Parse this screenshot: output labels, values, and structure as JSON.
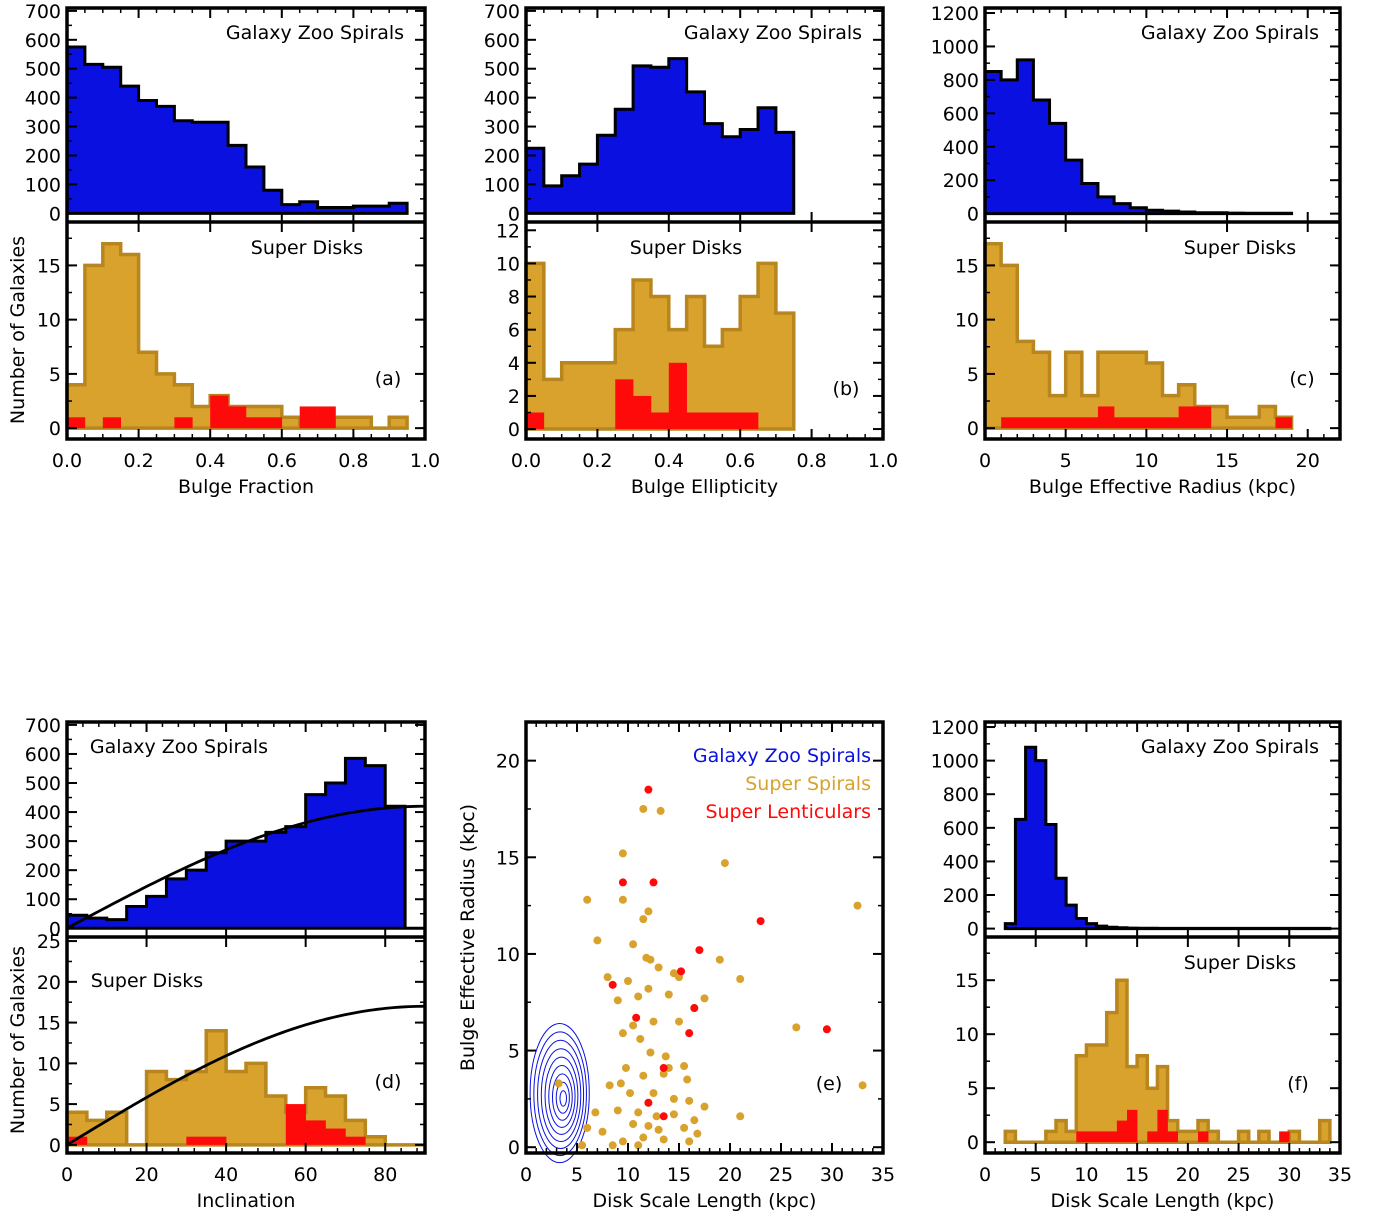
{
  "colors": {
    "gz": "#0a10e0",
    "sd": "#d8a22c",
    "sd_edge": "#b8861e",
    "sl": "#ff0a0a",
    "axis": "#000000"
  },
  "panel_labels": [
    "(a)",
    "(b)",
    "(c)",
    "(d)",
    "(e)",
    "(f)"
  ],
  "common": {
    "ylabel": "Number of Galaxies",
    "gz_label": "Galaxy Zoo Spirals",
    "sd_label": "Super Disks"
  },
  "chart_data": [
    {
      "id": "a",
      "type": "bar",
      "xlabel": "Bulge Fraction",
      "xlim": [
        0,
        1
      ],
      "xticks": [
        "0.0",
        "0.2",
        "0.4",
        "0.6",
        "0.8",
        "1.0"
      ],
      "top": {
        "title": "Galaxy Zoo Spirals",
        "ylim": [
          -30,
          710
        ],
        "yticks": [
          0,
          100,
          200,
          300,
          400,
          500,
          600,
          700
        ],
        "bin_start": 0,
        "bin_width": 0.05,
        "values": [
          575,
          515,
          505,
          440,
          390,
          370,
          320,
          315,
          315,
          235,
          160,
          80,
          30,
          40,
          20,
          20,
          25,
          25,
          35
        ]
      },
      "bottom": {
        "title": "Super Disks",
        "ylim": [
          -1,
          19
        ],
        "yticks": [
          0,
          5,
          10,
          15
        ],
        "bin_start": 0,
        "bin_width": 0.05,
        "spirals": [
          4,
          15,
          17,
          16,
          7,
          5,
          4,
          2,
          3,
          2,
          2,
          2,
          1,
          0,
          1,
          1,
          1,
          0,
          1
        ],
        "lenticulars": [
          1,
          0,
          1,
          0,
          0,
          0,
          1,
          0,
          3,
          2,
          1,
          1,
          0,
          2,
          2,
          0,
          0,
          0,
          0,
          0
        ]
      }
    },
    {
      "id": "b",
      "type": "bar",
      "xlabel": "Bulge Ellipticity",
      "xlim": [
        0,
        1
      ],
      "xticks": [
        "0.0",
        "0.2",
        "0.4",
        "0.6",
        "0.8",
        "1.0"
      ],
      "top": {
        "title": "Galaxy Zoo Spirals",
        "ylim": [
          -30,
          710
        ],
        "yticks": [
          0,
          100,
          200,
          300,
          400,
          500,
          600,
          700
        ],
        "bin_start": 0,
        "bin_width": 0.05,
        "values": [
          225,
          95,
          130,
          170,
          270,
          360,
          510,
          505,
          535,
          420,
          310,
          265,
          290,
          365,
          280
        ]
      },
      "bottom": {
        "title": "Super Disks",
        "ylim": [
          -0.6,
          12.5
        ],
        "yticks": [
          0,
          2,
          4,
          6,
          8,
          10,
          12
        ],
        "bin_start": 0,
        "bin_width": 0.05,
        "spirals": [
          10,
          3,
          4,
          4,
          4,
          6,
          9,
          8,
          6,
          8,
          5,
          6,
          8,
          10,
          7
        ],
        "lenticulars": [
          1,
          0,
          0,
          0,
          0,
          3,
          2,
          1,
          4,
          1,
          1,
          1,
          1,
          0,
          0
        ]
      }
    },
    {
      "id": "c",
      "type": "bar",
      "xlabel": "Bulge Effective Radius (kpc)",
      "xlim": [
        0,
        22
      ],
      "xticks": [
        "0",
        "5",
        "10",
        "15",
        "20"
      ],
      "top": {
        "title": "Galaxy Zoo Spirals",
        "ylim": [
          -50,
          1230
        ],
        "yticks": [
          0,
          200,
          400,
          600,
          800,
          1000,
          1200
        ],
        "bin_start": 0,
        "bin_width": 1,
        "values": [
          850,
          800,
          920,
          680,
          540,
          320,
          180,
          100,
          60,
          35,
          20,
          15,
          10,
          5,
          5,
          3,
          2,
          2,
          2
        ]
      },
      "bottom": {
        "title": "Super Disks",
        "ylim": [
          -1,
          19
        ],
        "yticks": [
          0,
          5,
          10,
          15
        ],
        "bin_start": 0,
        "bin_width": 1,
        "spirals": [
          17,
          15,
          8,
          7,
          3,
          7,
          3,
          7,
          7,
          7,
          6,
          3,
          4,
          2,
          2,
          1,
          1,
          2,
          1
        ],
        "lenticulars": [
          0,
          1,
          1,
          1,
          1,
          1,
          1,
          2,
          1,
          1,
          1,
          1,
          2,
          2,
          0,
          0,
          0,
          0,
          1
        ]
      }
    },
    {
      "id": "d",
      "type": "bar",
      "xlabel": "Inclination",
      "xlim": [
        0,
        90
      ],
      "xticks": [
        "0",
        "20",
        "40",
        "60",
        "80"
      ],
      "top": {
        "title": "Galaxy Zoo Spirals",
        "ylim": [
          -30,
          710
        ],
        "yticks": [
          0,
          100,
          200,
          300,
          400,
          500,
          600,
          700
        ],
        "bin_start": 0,
        "bin_width": 5,
        "values": [
          45,
          35,
          30,
          75,
          110,
          170,
          200,
          260,
          300,
          300,
          330,
          350,
          460,
          500,
          585,
          560,
          420,
          0
        ],
        "curve_amp": 420
      },
      "bottom": {
        "title": "Super Disks",
        "ylim": [
          -1,
          25.5
        ],
        "yticks": [
          0,
          5,
          10,
          15,
          20,
          25
        ],
        "bin_start": 0,
        "bin_width": 5,
        "spirals": [
          4,
          3,
          4,
          0,
          9,
          8,
          9,
          14,
          9,
          10,
          6,
          4,
          7,
          6,
          3,
          1,
          0,
          0
        ],
        "lenticulars": [
          1,
          0,
          0,
          0,
          0,
          0,
          1,
          1,
          0,
          0,
          0,
          5,
          3,
          2,
          1,
          0,
          0,
          0
        ],
        "curve_amp": 17
      }
    },
    {
      "id": "e",
      "type": "scatter",
      "xlabel": "Disk Scale Length (kpc)",
      "ylabel": "Bulge Effective Radius (kpc)",
      "xlim": [
        0,
        35
      ],
      "ylim": [
        -0.3,
        22
      ],
      "xticks": [
        "0",
        "5",
        "10",
        "15",
        "20",
        "25",
        "30",
        "35"
      ],
      "yticks": [
        "0",
        "5",
        "10",
        "15",
        "20"
      ],
      "legend": [
        "Galaxy Zoo Spirals",
        "Super Spirals",
        "Super Lenticulars"
      ],
      "contour_center": [
        3.5,
        2.8
      ],
      "contour_levels": 9,
      "super_spirals": [
        [
          11.5,
          17.5
        ],
        [
          13.2,
          17.4
        ],
        [
          9.5,
          15.2
        ],
        [
          19.5,
          14.7
        ],
        [
          32.5,
          12.5
        ],
        [
          6,
          12.8
        ],
        [
          9.5,
          12.8
        ],
        [
          11.5,
          11.8
        ],
        [
          12,
          12.2
        ],
        [
          7,
          10.7
        ],
        [
          10.5,
          10.5
        ],
        [
          11.8,
          9.8
        ],
        [
          12.2,
          9.7
        ],
        [
          14.5,
          9
        ],
        [
          19,
          9.7
        ],
        [
          8,
          8.8
        ],
        [
          10,
          8.6
        ],
        [
          13,
          9.3
        ],
        [
          15,
          8.8
        ],
        [
          21,
          8.7
        ],
        [
          9,
          7.6
        ],
        [
          11,
          7.8
        ],
        [
          12,
          8.2
        ],
        [
          14,
          7.9
        ],
        [
          16.5,
          7.2
        ],
        [
          17.5,
          7.7
        ],
        [
          10.5,
          6.3
        ],
        [
          12.5,
          6.5
        ],
        [
          15,
          6.5
        ],
        [
          26.5,
          6.2
        ],
        [
          9.5,
          5.9
        ],
        [
          11.2,
          5.6
        ],
        [
          13.7,
          4.7
        ],
        [
          9.8,
          4.1
        ],
        [
          12.2,
          4.9
        ],
        [
          14,
          4.1
        ],
        [
          15.5,
          4.2
        ],
        [
          3.2,
          3.3
        ],
        [
          8.2,
          3.2
        ],
        [
          9.3,
          3.3
        ],
        [
          11.5,
          3.7
        ],
        [
          13.5,
          3.8
        ],
        [
          15.8,
          3.5
        ],
        [
          10.2,
          2.8
        ],
        [
          12.5,
          2.8
        ],
        [
          14.5,
          2.5
        ],
        [
          16,
          2.4
        ],
        [
          17.5,
          2.1
        ],
        [
          6.8,
          1.8
        ],
        [
          9,
          1.9
        ],
        [
          11,
          1.8
        ],
        [
          12.8,
          1.6
        ],
        [
          14.5,
          1.7
        ],
        [
          16.5,
          1.4
        ],
        [
          21,
          1.6
        ],
        [
          6,
          1
        ],
        [
          7.5,
          0.8
        ],
        [
          10.5,
          1.2
        ],
        [
          12,
          1.1
        ],
        [
          13,
          0.9
        ],
        [
          15.5,
          1
        ],
        [
          16.8,
          0.7
        ],
        [
          9.5,
          0.3
        ],
        [
          11.5,
          0.5
        ],
        [
          13.5,
          0.4
        ],
        [
          16,
          0.3
        ],
        [
          33,
          3.2
        ],
        [
          5.5,
          0.1
        ],
        [
          8.5,
          0.1
        ],
        [
          11,
          0.1
        ]
      ],
      "super_lenticulars": [
        [
          12,
          18.5
        ],
        [
          9.5,
          13.7
        ],
        [
          12.5,
          13.7
        ],
        [
          23,
          11.7
        ],
        [
          17,
          10.2
        ],
        [
          15.2,
          9.1
        ],
        [
          8.5,
          8.4
        ],
        [
          10.8,
          6.7
        ],
        [
          16.5,
          7.2
        ],
        [
          29.5,
          6.1
        ],
        [
          16,
          5.9
        ],
        [
          13.5,
          4.1
        ],
        [
          12,
          2.3
        ],
        [
          13.5,
          1.6
        ]
      ]
    },
    {
      "id": "f",
      "type": "bar",
      "xlabel": "Disk Scale Length (kpc)",
      "xlim": [
        0,
        35
      ],
      "xticks": [
        "0",
        "5",
        "10",
        "15",
        "20",
        "25",
        "30",
        "35"
      ],
      "top": {
        "title": "Galaxy Zoo Spirals",
        "ylim": [
          -50,
          1230
        ],
        "yticks": [
          0,
          200,
          400,
          600,
          800,
          1000,
          1200
        ],
        "bin_start": 2,
        "bin_width": 1,
        "values": [
          30,
          650,
          1080,
          1000,
          620,
          300,
          140,
          60,
          30,
          15,
          8,
          5,
          3,
          2,
          2,
          1,
          1,
          1,
          1,
          1,
          1,
          1,
          1,
          1,
          1,
          1,
          1,
          1,
          1,
          1,
          1,
          1
        ]
      },
      "bottom": {
        "title": "Super Disks",
        "ylim": [
          -1,
          19
        ],
        "yticks": [
          0,
          5,
          10,
          15
        ],
        "bin_start": 2,
        "bin_width": 1,
        "spirals": [
          1,
          0,
          0,
          0,
          1,
          2,
          1,
          8,
          9,
          9,
          12,
          15,
          7,
          8,
          5,
          7,
          2,
          1,
          1,
          2,
          1,
          0,
          0,
          1,
          0,
          1,
          0,
          0,
          1,
          0,
          0,
          2
        ],
        "lenticulars": [
          0,
          0,
          0,
          0,
          0,
          0,
          0,
          1,
          1,
          1,
          1,
          2,
          3,
          0,
          1,
          3,
          1,
          0,
          0,
          1,
          0,
          0,
          0,
          0,
          0,
          0,
          0,
          1,
          0,
          0,
          0,
          0
        ]
      }
    }
  ]
}
